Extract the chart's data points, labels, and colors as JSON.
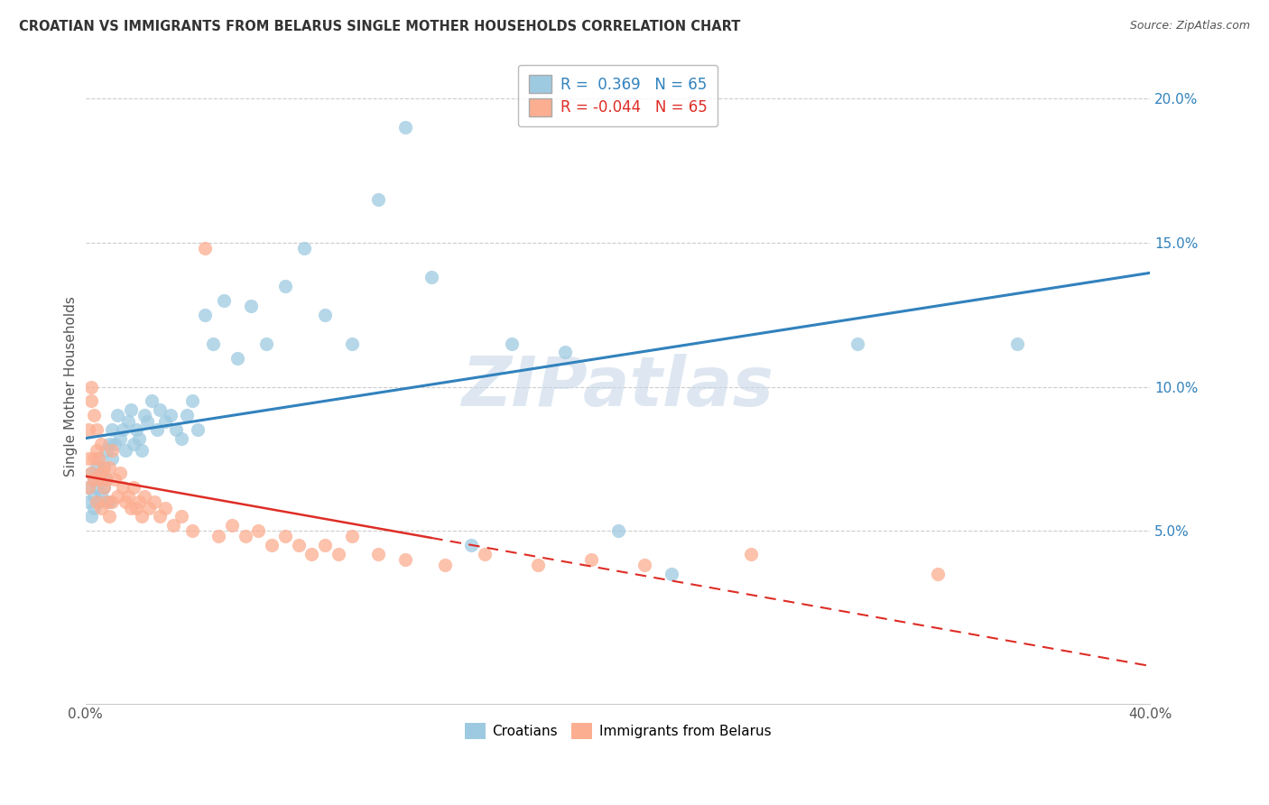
{
  "title": "CROATIAN VS IMMIGRANTS FROM BELARUS SINGLE MOTHER HOUSEHOLDS CORRELATION CHART",
  "source": "Source: ZipAtlas.com",
  "ylabel": "Single Mother Households",
  "xlim": [
    0.0,
    0.4
  ],
  "ylim": [
    -0.01,
    0.21
  ],
  "croatian_R": 0.369,
  "croatian_N": 65,
  "belarus_R": -0.044,
  "belarus_N": 65,
  "blue_color": "#9ecae1",
  "pink_color": "#fcae91",
  "blue_line_color": "#3182bd",
  "pink_line_color": "#de2d26",
  "watermark": "ZIPatlas",
  "background_color": "#ffffff",
  "grid_color": "#cccccc",
  "croatian_x": [
    0.001,
    0.001,
    0.002,
    0.002,
    0.003,
    0.003,
    0.003,
    0.004,
    0.004,
    0.005,
    0.005,
    0.005,
    0.006,
    0.006,
    0.007,
    0.007,
    0.008,
    0.008,
    0.009,
    0.009,
    0.01,
    0.01,
    0.011,
    0.012,
    0.013,
    0.014,
    0.015,
    0.016,
    0.017,
    0.018,
    0.019,
    0.02,
    0.021,
    0.022,
    0.023,
    0.025,
    0.027,
    0.028,
    0.03,
    0.032,
    0.034,
    0.036,
    0.038,
    0.04,
    0.042,
    0.045,
    0.048,
    0.052,
    0.057,
    0.062,
    0.068,
    0.075,
    0.082,
    0.09,
    0.1,
    0.11,
    0.12,
    0.13,
    0.145,
    0.16,
    0.18,
    0.2,
    0.22,
    0.29,
    0.35
  ],
  "croatian_y": [
    0.065,
    0.06,
    0.07,
    0.055,
    0.068,
    0.062,
    0.058,
    0.065,
    0.072,
    0.06,
    0.068,
    0.075,
    0.063,
    0.07,
    0.065,
    0.072,
    0.068,
    0.078,
    0.06,
    0.08,
    0.085,
    0.075,
    0.08,
    0.09,
    0.082,
    0.085,
    0.078,
    0.088,
    0.092,
    0.08,
    0.085,
    0.082,
    0.078,
    0.09,
    0.088,
    0.095,
    0.085,
    0.092,
    0.088,
    0.09,
    0.085,
    0.082,
    0.09,
    0.095,
    0.085,
    0.125,
    0.115,
    0.13,
    0.11,
    0.128,
    0.115,
    0.135,
    0.148,
    0.125,
    0.115,
    0.165,
    0.19,
    0.138,
    0.045,
    0.115,
    0.112,
    0.05,
    0.035,
    0.115,
    0.115
  ],
  "belarus_x": [
    0.001,
    0.001,
    0.001,
    0.002,
    0.002,
    0.002,
    0.003,
    0.003,
    0.003,
    0.004,
    0.004,
    0.004,
    0.005,
    0.005,
    0.006,
    0.006,
    0.006,
    0.007,
    0.007,
    0.008,
    0.008,
    0.009,
    0.009,
    0.01,
    0.01,
    0.011,
    0.012,
    0.013,
    0.014,
    0.015,
    0.016,
    0.017,
    0.018,
    0.019,
    0.02,
    0.021,
    0.022,
    0.024,
    0.026,
    0.028,
    0.03,
    0.033,
    0.036,
    0.04,
    0.045,
    0.05,
    0.055,
    0.06,
    0.065,
    0.07,
    0.075,
    0.08,
    0.085,
    0.09,
    0.095,
    0.1,
    0.11,
    0.12,
    0.135,
    0.15,
    0.17,
    0.19,
    0.21,
    0.25,
    0.32
  ],
  "belarus_y": [
    0.065,
    0.075,
    0.085,
    0.07,
    0.095,
    0.1,
    0.068,
    0.075,
    0.09,
    0.06,
    0.078,
    0.085,
    0.068,
    0.075,
    0.058,
    0.07,
    0.08,
    0.065,
    0.072,
    0.06,
    0.068,
    0.055,
    0.072,
    0.06,
    0.078,
    0.068,
    0.062,
    0.07,
    0.065,
    0.06,
    0.062,
    0.058,
    0.065,
    0.058,
    0.06,
    0.055,
    0.062,
    0.058,
    0.06,
    0.055,
    0.058,
    0.052,
    0.055,
    0.05,
    0.148,
    0.048,
    0.052,
    0.048,
    0.05,
    0.045,
    0.048,
    0.045,
    0.042,
    0.045,
    0.042,
    0.048,
    0.042,
    0.04,
    0.038,
    0.042,
    0.038,
    0.04,
    0.038,
    0.042,
    0.035
  ]
}
